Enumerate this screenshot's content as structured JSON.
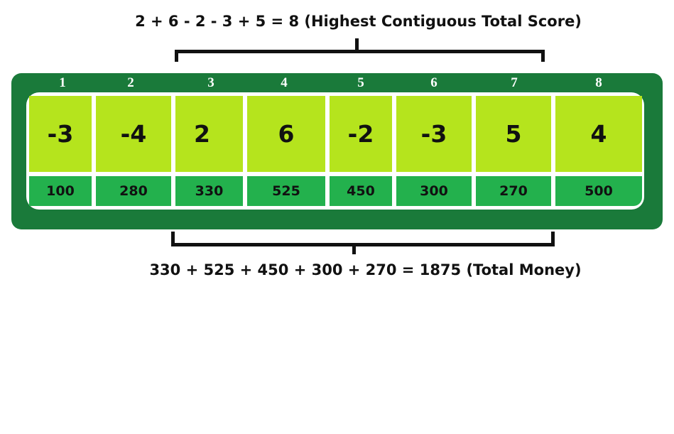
{
  "top_caption": "2 + 6 - 2 - 3 + 5 = 8 (Highest Contiguous Total Score)",
  "bottom_caption": "330 + 525 + 450 + 300 + 270 = 1875 (Total Money)",
  "indices": [
    "1",
    "2",
    "3",
    "4",
    "5",
    "6",
    "7",
    "8"
  ],
  "scores": [
    "-3",
    "-4",
    "2",
    "6",
    "-2",
    "-3",
    "5",
    "4"
  ],
  "money": [
    "100",
    "280",
    "330",
    "525",
    "450",
    "300",
    "270",
    "500"
  ],
  "colors": {
    "board": "#1a7a3a",
    "score_cell": "#b5e41d",
    "money_cell": "#23b14d",
    "text": "#111111"
  }
}
